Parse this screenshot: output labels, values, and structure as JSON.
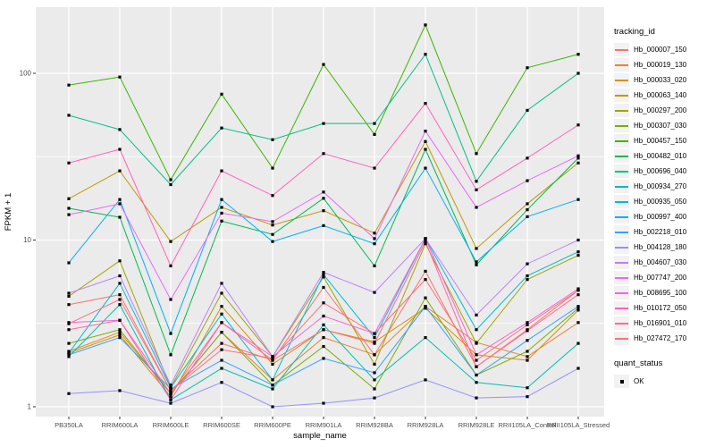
{
  "chart_data": {
    "type": "line",
    "title": "",
    "xlabel": "sample_name",
    "ylabel": "FPKM + 1",
    "y_scale": "log10",
    "y_ticks": [
      1,
      10,
      100
    ],
    "y_minor": [
      3.1623,
      31.623
    ],
    "ylim": [
      0.87,
      250
    ],
    "grid": "on",
    "legend_position": "right",
    "categories": [
      "PB350LA",
      "RRIM600LA",
      "RRIM600LE",
      "RRIM600SE",
      "RRIM600PE",
      "RRIM901LA",
      "RRIM928BA",
      "RRIM928LA",
      "RRIM928LE",
      "RRII105LA_Control",
      "RRII105LA_Stressed"
    ],
    "legend_title": "tracking_id",
    "point_legend_title": "quant_status",
    "point_legend_label": "OK",
    "panel_color": "#EBEBEB",
    "grid_color": "#FFFFFF",
    "tick_text_color": "#4D4D4D",
    "point_color": "#000000",
    "series": [
      {
        "name": "Hb_000007_150",
        "color": "#F8766D",
        "values": [
          4.1,
          4.7,
          1.25,
          2.4,
          1.9,
          5.2,
          2.05,
          6.5,
          1.74,
          2.9,
          5.0
        ]
      },
      {
        "name": "Hb_000019_130",
        "color": "#EA8331",
        "values": [
          2.15,
          2.8,
          1.2,
          2.8,
          1.45,
          2.6,
          2.05,
          4.0,
          2.43,
          2.0,
          3.2
        ]
      },
      {
        "name": "Hb_000033_020",
        "color": "#D89000",
        "values": [
          2.1,
          2.7,
          1.15,
          4.0,
          1.8,
          2.9,
          2.45,
          3.9,
          2.05,
          1.9,
          3.8
        ]
      },
      {
        "name": "Hb_000063_140",
        "color": "#C09B00",
        "values": [
          17.7,
          26,
          9.8,
          15.7,
          12.3,
          15,
          11,
          39,
          8.9,
          16.5,
          29
        ]
      },
      {
        "name": "Hb_000297_200",
        "color": "#A3A500",
        "values": [
          4.6,
          7.5,
          1.3,
          4.8,
          2.0,
          6.0,
          1.8,
          9.5,
          2.4,
          5.8,
          8.1
        ]
      },
      {
        "name": "Hb_000307_030",
        "color": "#7CAE00",
        "values": [
          2.4,
          2.9,
          1.2,
          2.8,
          1.35,
          2.3,
          1.28,
          4.5,
          1.55,
          2.15,
          3.9
        ]
      },
      {
        "name": "Hb_000457_150",
        "color": "#39B600",
        "values": [
          85,
          95,
          23,
          75,
          27,
          113,
          43,
          195,
          33,
          108,
          130
        ]
      },
      {
        "name": "Hb_000482_010",
        "color": "#00BB4E",
        "values": [
          15.5,
          13.7,
          2.05,
          13,
          10.8,
          17.8,
          7.0,
          35,
          7.1,
          15.2,
          31
        ]
      },
      {
        "name": "Hb_000696_040",
        "color": "#00C08B",
        "values": [
          56,
          46,
          21.5,
          47,
          40,
          50,
          50,
          130,
          22.5,
          60,
          100
        ]
      },
      {
        "name": "Hb_000934_270",
        "color": "#00C0AF",
        "values": [
          2.0,
          4.1,
          1.1,
          1.7,
          1.28,
          3.1,
          1.45,
          2.6,
          1.4,
          1.3,
          2.4
        ]
      },
      {
        "name": "Hb_000935_050",
        "color": "#00BCD8",
        "values": [
          2.1,
          5.5,
          1.3,
          3.6,
          1.45,
          6.2,
          2.6,
          10.2,
          2.9,
          6.1,
          8.5
        ]
      },
      {
        "name": "Hb_000997_400",
        "color": "#00B0F6",
        "values": [
          7.3,
          17.5,
          2.75,
          17.5,
          9.8,
          12.2,
          9.5,
          27,
          7.4,
          13.8,
          17.5
        ]
      },
      {
        "name": "Hb_002218_010",
        "color": "#35A2FF",
        "values": [
          2.05,
          2.6,
          1.28,
          1.9,
          1.35,
          1.95,
          1.6,
          4.0,
          1.55,
          2.5,
          4.0
        ]
      },
      {
        "name": "Hb_004128_180",
        "color": "#9590FF",
        "values": [
          1.2,
          1.25,
          1.05,
          1.4,
          1.0,
          1.05,
          1.13,
          1.45,
          1.13,
          1.15,
          1.7
        ]
      },
      {
        "name": "Hb_004607_030",
        "color": "#BC80FF",
        "values": [
          4.8,
          6.1,
          1.35,
          5.5,
          2.0,
          6.4,
          4.85,
          10.2,
          3.55,
          7.2,
          10
        ]
      },
      {
        "name": "Hb_007747_200",
        "color": "#E76BF3",
        "values": [
          14.2,
          16.5,
          4.4,
          14.5,
          12.9,
          19.4,
          10.2,
          45,
          15.7,
          22.7,
          32
        ]
      },
      {
        "name": "Hb_008695_100",
        "color": "#FA62DB",
        "values": [
          3.2,
          3.3,
          1.1,
          3.2,
          2.0,
          3.5,
          2.75,
          10.2,
          2.05,
          3.2,
          5.1
        ]
      },
      {
        "name": "Hb_010172_050",
        "color": "#FF62BC",
        "values": [
          29,
          35,
          7,
          26,
          18.5,
          33,
          27,
          66,
          20,
          31,
          49
        ]
      },
      {
        "name": "Hb_016901_010",
        "color": "#FF6A98",
        "values": [
          2.9,
          3.3,
          1.2,
          3.2,
          1.9,
          2.9,
          2.4,
          9.8,
          1.74,
          2.86,
          4.7
        ]
      },
      {
        "name": "Hb_027472_170",
        "color": "#FC717F",
        "values": [
          3.15,
          4.4,
          1.25,
          2.2,
          1.95,
          4.2,
          2.75,
          5.8,
          1.9,
          3.1,
          5.0
        ]
      }
    ]
  }
}
